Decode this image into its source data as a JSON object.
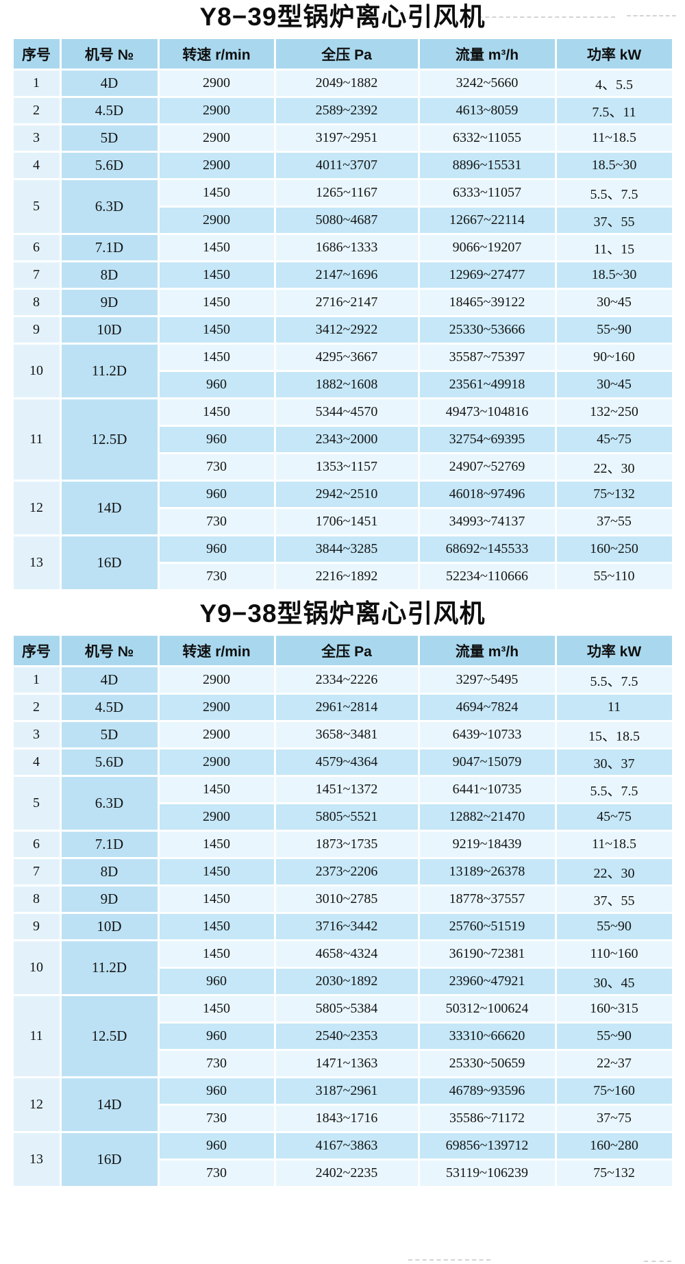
{
  "tables": [
    {
      "id": "y8-39",
      "title": "Y8−39型锅炉离心引风机",
      "headers": [
        "序号",
        "机号 №",
        "转速 r/min",
        "全压 Pa",
        "流量 m³/h",
        "功率 kW"
      ],
      "rows": [
        {
          "no": "1",
          "model": "4D",
          "specs": [
            [
              "2900",
              "2049~1882",
              "3242~5660",
              "4、5.5"
            ]
          ]
        },
        {
          "no": "2",
          "model": "4.5D",
          "specs": [
            [
              "2900",
              "2589~2392",
              "4613~8059",
              "7.5、11"
            ]
          ]
        },
        {
          "no": "3",
          "model": "5D",
          "specs": [
            [
              "2900",
              "3197~2951",
              "6332~11055",
              "11~18.5"
            ]
          ]
        },
        {
          "no": "4",
          "model": "5.6D",
          "specs": [
            [
              "2900",
              "4011~3707",
              "8896~15531",
              "18.5~30"
            ]
          ]
        },
        {
          "no": "5",
          "model": "6.3D",
          "specs": [
            [
              "1450",
              "1265~1167",
              "6333~11057",
              "5.5、7.5"
            ],
            [
              "2900",
              "5080~4687",
              "12667~22114",
              "37、55"
            ]
          ]
        },
        {
          "no": "6",
          "model": "7.1D",
          "specs": [
            [
              "1450",
              "1686~1333",
              "9066~19207",
              "11、15"
            ]
          ]
        },
        {
          "no": "7",
          "model": "8D",
          "specs": [
            [
              "1450",
              "2147~1696",
              "12969~27477",
              "18.5~30"
            ]
          ]
        },
        {
          "no": "8",
          "model": "9D",
          "specs": [
            [
              "1450",
              "2716~2147",
              "18465~39122",
              "30~45"
            ]
          ]
        },
        {
          "no": "9",
          "model": "10D",
          "specs": [
            [
              "1450",
              "3412~2922",
              "25330~53666",
              "55~90"
            ]
          ]
        },
        {
          "no": "10",
          "model": "11.2D",
          "specs": [
            [
              "1450",
              "4295~3667",
              "35587~75397",
              "90~160"
            ],
            [
              "960",
              "1882~1608",
              "23561~49918",
              "30~45"
            ]
          ]
        },
        {
          "no": "11",
          "model": "12.5D",
          "specs": [
            [
              "1450",
              "5344~4570",
              "49473~104816",
              "132~250"
            ],
            [
              "960",
              "2343~2000",
              "32754~69395",
              "45~75"
            ],
            [
              "730",
              "1353~1157",
              "24907~52769",
              "22、30"
            ]
          ]
        },
        {
          "no": "12",
          "model": "14D",
          "specs": [
            [
              "960",
              "2942~2510",
              "46018~97496",
              "75~132"
            ],
            [
              "730",
              "1706~1451",
              "34993~74137",
              "37~55"
            ]
          ]
        },
        {
          "no": "13",
          "model": "16D",
          "specs": [
            [
              "960",
              "3844~3285",
              "68692~145533",
              "160~250"
            ],
            [
              "730",
              "2216~1892",
              "52234~110666",
              "55~110"
            ]
          ]
        }
      ]
    },
    {
      "id": "y9-38",
      "title": "Y9−38型锅炉离心引风机",
      "headers": [
        "序号",
        "机号 №",
        "转速 r/min",
        "全压 Pa",
        "流量 m³/h",
        "功率 kW"
      ],
      "rows": [
        {
          "no": "1",
          "model": "4D",
          "specs": [
            [
              "2900",
              "2334~2226",
              "3297~5495",
              "5.5、7.5"
            ]
          ]
        },
        {
          "no": "2",
          "model": "4.5D",
          "specs": [
            [
              "2900",
              "2961~2814",
              "4694~7824",
              "11"
            ]
          ]
        },
        {
          "no": "3",
          "model": "5D",
          "specs": [
            [
              "2900",
              "3658~3481",
              "6439~10733",
              "15、18.5"
            ]
          ]
        },
        {
          "no": "4",
          "model": "5.6D",
          "specs": [
            [
              "2900",
              "4579~4364",
              "9047~15079",
              "30、37"
            ]
          ]
        },
        {
          "no": "5",
          "model": "6.3D",
          "specs": [
            [
              "1450",
              "1451~1372",
              "6441~10735",
              "5.5、7.5"
            ],
            [
              "2900",
              "5805~5521",
              "12882~21470",
              "45~75"
            ]
          ]
        },
        {
          "no": "6",
          "model": "7.1D",
          "specs": [
            [
              "1450",
              "1873~1735",
              "9219~18439",
              "11~18.5"
            ]
          ]
        },
        {
          "no": "7",
          "model": "8D",
          "specs": [
            [
              "1450",
              "2373~2206",
              "13189~26378",
              "22、30"
            ]
          ]
        },
        {
          "no": "8",
          "model": "9D",
          "specs": [
            [
              "1450",
              "3010~2785",
              "18778~37557",
              "37、55"
            ]
          ]
        },
        {
          "no": "9",
          "model": "10D",
          "specs": [
            [
              "1450",
              "3716~3442",
              "25760~51519",
              "55~90"
            ]
          ]
        },
        {
          "no": "10",
          "model": "11.2D",
          "specs": [
            [
              "1450",
              "4658~4324",
              "36190~72381",
              "110~160"
            ],
            [
              "960",
              "2030~1892",
              "23960~47921",
              "30、45"
            ]
          ]
        },
        {
          "no": "11",
          "model": "12.5D",
          "specs": [
            [
              "1450",
              "5805~5384",
              "50312~100624",
              "160~315"
            ],
            [
              "960",
              "2540~2353",
              "33310~66620",
              "55~90"
            ],
            [
              "730",
              "1471~1363",
              "25330~50659",
              "22~37"
            ]
          ]
        },
        {
          "no": "12",
          "model": "14D",
          "specs": [
            [
              "960",
              "3187~2961",
              "46789~93596",
              "75~160"
            ],
            [
              "730",
              "1843~1716",
              "35586~71172",
              "37~75"
            ]
          ]
        },
        {
          "no": "13",
          "model": "16D",
          "specs": [
            [
              "960",
              "4167~3863",
              "69856~139712",
              "160~280"
            ],
            [
              "730",
              "2402~2235",
              "53119~106239",
              "75~132"
            ]
          ]
        }
      ]
    }
  ],
  "colors": {
    "header_bg": "#a9d8ee",
    "serial_col_bg": "#e3f2fa",
    "model_col_bg": "#bce1f4",
    "row_light_bg": "#e9f6fd",
    "row_dark_bg": "#c5e7f7",
    "grid_line": "#ffffff",
    "text": "#141414"
  }
}
